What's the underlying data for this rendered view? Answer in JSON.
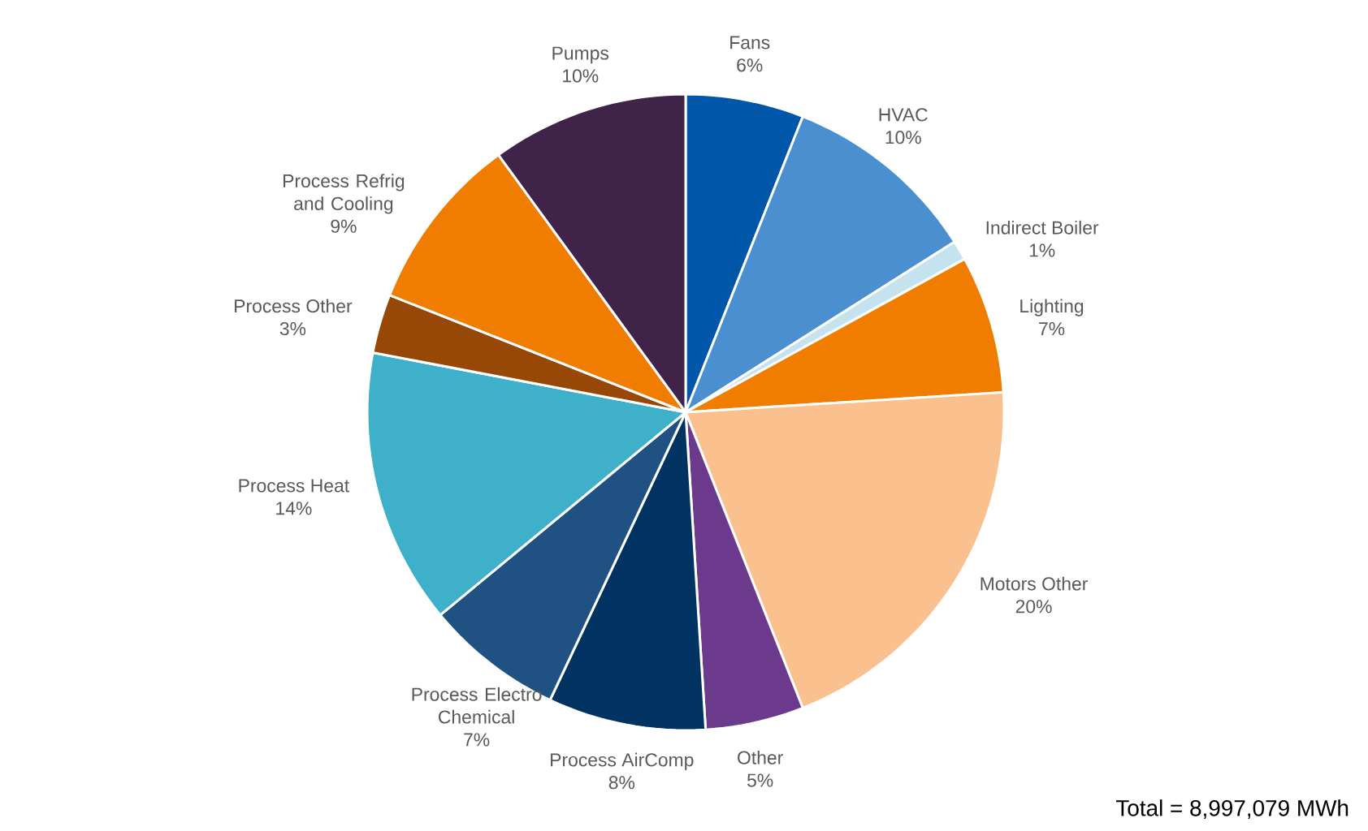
{
  "chart_data": {
    "type": "pie",
    "categories": [
      "Fans",
      "HVAC",
      "Indirect Boiler",
      "Lighting",
      "Motors Other",
      "Other",
      "Process AirComp",
      "Process Electro Chemical",
      "Process Heat",
      "Process Other",
      "Process Refrig and Cooling",
      "Pumps"
    ],
    "values": [
      6,
      10,
      1,
      7,
      20,
      5,
      8,
      7,
      14,
      3,
      9,
      10
    ],
    "value_labels": [
      "6%",
      "10%",
      "1%",
      "7%",
      "20%",
      "5%",
      "8%",
      "7%",
      "14%",
      "3%",
      "9%",
      "10%"
    ],
    "colors": [
      "#0056a8",
      "#4a90d0",
      "#c5e3ee",
      "#f07d00",
      "#fac18e",
      "#6b3a8c",
      "#003361",
      "#1f5282",
      "#3fb0c9",
      "#974706",
      "#f07d00",
      "#3f2348"
    ],
    "annotations": [
      "Total = 8,997,079 MWh"
    ]
  }
}
